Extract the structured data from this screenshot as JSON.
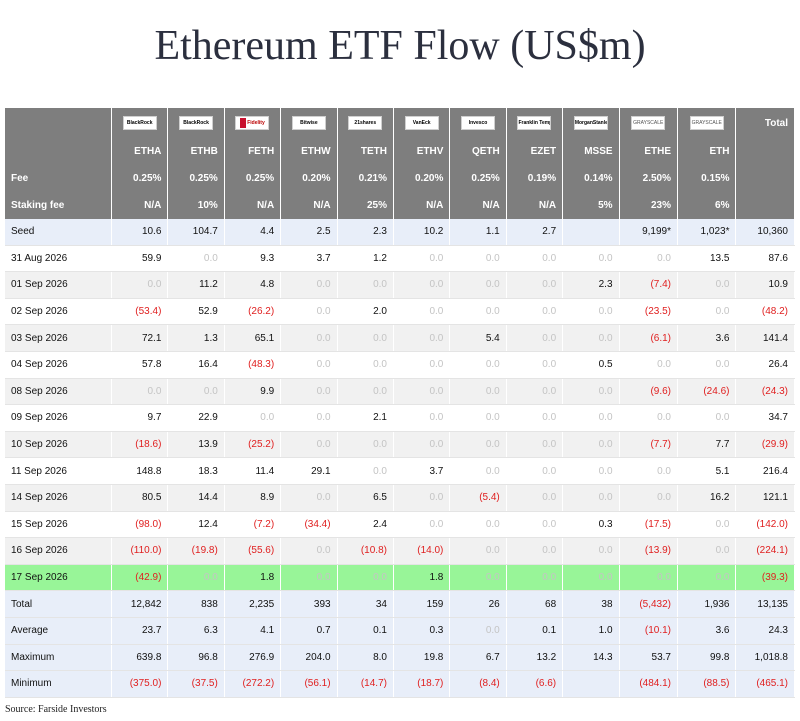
{
  "title": "Ethereum ETF Flow (US$m)",
  "source": "Source: Farside Investors",
  "issuer_logos": [
    "BlackRock",
    "BlackRock",
    "Fidelity",
    "Bitwise",
    "21shares",
    "VanEck",
    "Invesco",
    "Franklin Templeton",
    "MorganStanley",
    "GRAYSCALE",
    "GRAYSCALE"
  ],
  "total_header": "Total",
  "tickers": [
    "ETHA",
    "ETHB",
    "FETH",
    "ETHW",
    "TETH",
    "ETHV",
    "QETH",
    "EZET",
    "MSSE",
    "ETHE",
    "ETH"
  ],
  "fee_label": "Fee",
  "fees": [
    "0.25%",
    "0.25%",
    "0.25%",
    "0.20%",
    "0.21%",
    "0.20%",
    "0.25%",
    "0.19%",
    "0.14%",
    "2.50%",
    "0.15%"
  ],
  "staking_label": "Staking fee",
  "staking_fees": [
    "N/A",
    "10%",
    "N/A",
    "N/A",
    "25%",
    "N/A",
    "N/A",
    "N/A",
    "5%",
    "23%",
    "6%"
  ],
  "seed": {
    "label": "Seed",
    "cells": [
      "10.6",
      "104.7",
      "4.4",
      "2.5",
      "2.3",
      "10.2",
      "1.1",
      "2.7",
      "",
      "9,199*",
      "1,023*",
      "10,360"
    ]
  },
  "rows": [
    {
      "label": "31 Aug 2026",
      "cells": [
        "59.9",
        "0.0",
        "9.3",
        "3.7",
        "1.2",
        "0.0",
        "0.0",
        "0.0",
        "0.0",
        "0.0",
        "13.5",
        "87.6"
      ]
    },
    {
      "label": "01 Sep 2026",
      "cells": [
        "0.0",
        "11.2",
        "4.8",
        "0.0",
        "0.0",
        "0.0",
        "0.0",
        "0.0",
        "2.3",
        "(7.4)",
        "0.0",
        "10.9"
      ]
    },
    {
      "label": "02 Sep 2026",
      "cells": [
        "(53.4)",
        "52.9",
        "(26.2)",
        "0.0",
        "2.0",
        "0.0",
        "0.0",
        "0.0",
        "0.0",
        "(23.5)",
        "0.0",
        "(48.2)"
      ]
    },
    {
      "label": "03 Sep 2026",
      "cells": [
        "72.1",
        "1.3",
        "65.1",
        "0.0",
        "0.0",
        "0.0",
        "5.4",
        "0.0",
        "0.0",
        "(6.1)",
        "3.6",
        "141.4"
      ]
    },
    {
      "label": "04 Sep 2026",
      "cells": [
        "57.8",
        "16.4",
        "(48.3)",
        "0.0",
        "0.0",
        "0.0",
        "0.0",
        "0.0",
        "0.5",
        "0.0",
        "0.0",
        "26.4"
      ]
    },
    {
      "label": "08 Sep 2026",
      "cells": [
        "0.0",
        "0.0",
        "9.9",
        "0.0",
        "0.0",
        "0.0",
        "0.0",
        "0.0",
        "0.0",
        "(9.6)",
        "(24.6)",
        "(24.3)"
      ]
    },
    {
      "label": "09 Sep 2026",
      "cells": [
        "9.7",
        "22.9",
        "0.0",
        "0.0",
        "2.1",
        "0.0",
        "0.0",
        "0.0",
        "0.0",
        "0.0",
        "0.0",
        "34.7"
      ]
    },
    {
      "label": "10 Sep 2026",
      "cells": [
        "(18.6)",
        "13.9",
        "(25.2)",
        "0.0",
        "0.0",
        "0.0",
        "0.0",
        "0.0",
        "0.0",
        "(7.7)",
        "7.7",
        "(29.9)"
      ]
    },
    {
      "label": "11 Sep 2026",
      "cells": [
        "148.8",
        "18.3",
        "11.4",
        "29.1",
        "0.0",
        "3.7",
        "0.0",
        "0.0",
        "0.0",
        "0.0",
        "5.1",
        "216.4"
      ]
    },
    {
      "label": "14 Sep 2026",
      "cells": [
        "80.5",
        "14.4",
        "8.9",
        "0.0",
        "6.5",
        "0.0",
        "(5.4)",
        "0.0",
        "0.0",
        "0.0",
        "16.2",
        "121.1"
      ]
    },
    {
      "label": "15 Sep 2026",
      "cells": [
        "(98.0)",
        "12.4",
        "(7.2)",
        "(34.4)",
        "2.4",
        "0.0",
        "0.0",
        "0.0",
        "0.3",
        "(17.5)",
        "0.0",
        "(142.0)"
      ]
    },
    {
      "label": "16 Sep 2026",
      "cells": [
        "(110.0)",
        "(19.8)",
        "(55.6)",
        "0.0",
        "(10.8)",
        "(14.0)",
        "0.0",
        "0.0",
        "0.0",
        "(13.9)",
        "0.0",
        "(224.1)"
      ]
    },
    {
      "label": "17 Sep 2026",
      "highlight": true,
      "cells": [
        "(42.9)",
        "0.0",
        "1.8",
        "0.0",
        "0.0",
        "1.8",
        "0.0",
        "0.0",
        "0.0",
        "0.0",
        "0.0",
        "(39.3)"
      ]
    }
  ],
  "summary": [
    {
      "label": "Total",
      "cells": [
        "12,842",
        "838",
        "2,235",
        "393",
        "34",
        "159",
        "26",
        "68",
        "38",
        "(5,432)",
        "1,936",
        "13,135"
      ]
    },
    {
      "label": "Average",
      "cells": [
        "23.7",
        "6.3",
        "4.1",
        "0.7",
        "0.1",
        "0.3",
        "0.0",
        "0.1",
        "1.0",
        "(10.1)",
        "3.6",
        "24.3"
      ]
    },
    {
      "label": "Maximum",
      "cells": [
        "639.8",
        "96.8",
        "276.9",
        "204.0",
        "8.0",
        "19.8",
        "6.7",
        "13.2",
        "14.3",
        "53.7",
        "99.8",
        "1,018.8"
      ]
    },
    {
      "label": "Minimum",
      "cells": [
        "(375.0)",
        "(37.5)",
        "(272.2)",
        "(56.1)",
        "(14.7)",
        "(18.7)",
        "(8.4)",
        "(6.6)",
        "",
        "(484.1)",
        "(88.5)",
        "(465.1)"
      ]
    }
  ]
}
